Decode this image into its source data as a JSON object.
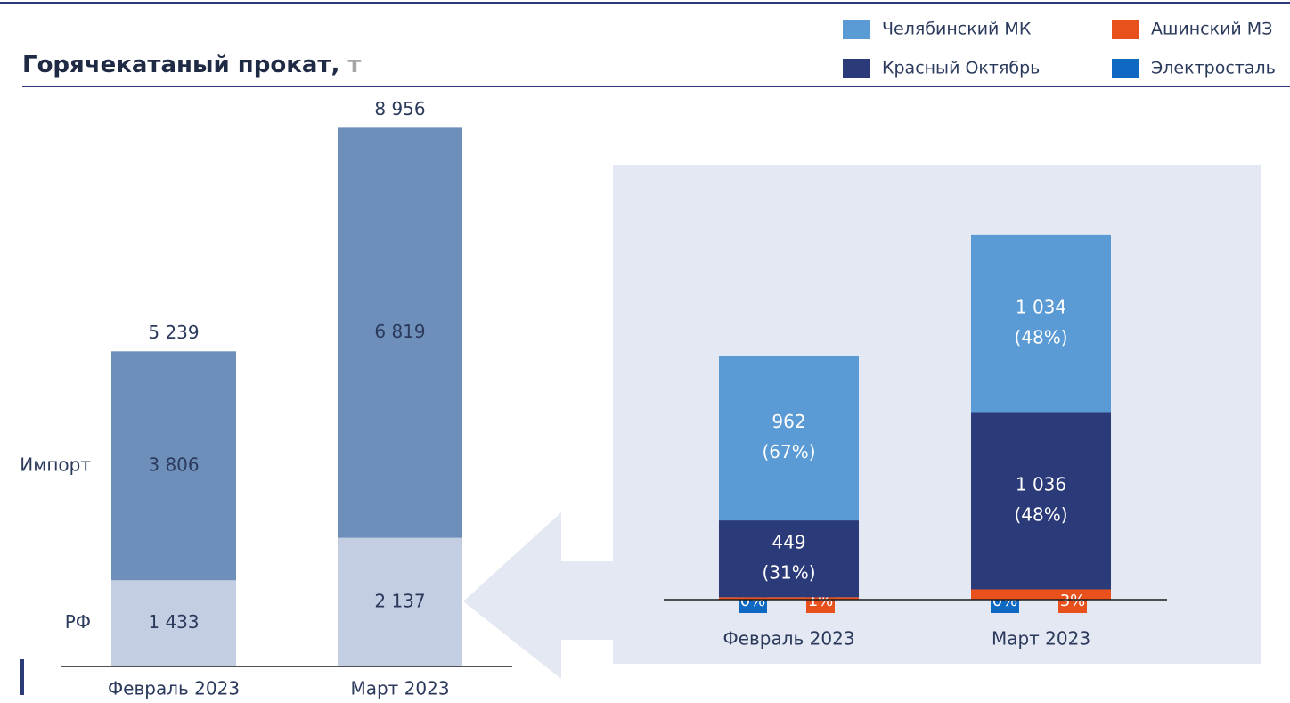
{
  "chart_data": [
    {
      "type": "stacked_bar",
      "title": "Горячекатаный прокат,",
      "unit": "т",
      "categories": [
        "Февраль 2023",
        "Март 2023"
      ],
      "series": [
        {
          "name": "РФ",
          "color": "#c3cee2",
          "values": [
            1433,
            2137
          ],
          "value_labels": [
            "1 433",
            "2 137"
          ]
        },
        {
          "name": "Импорт",
          "color": "#6f8fbb",
          "values": [
            3806,
            6819
          ],
          "value_labels": [
            "3 806",
            "6 819"
          ]
        }
      ],
      "totals": [
        5239,
        8956
      ],
      "total_labels": [
        "5 239",
        "8 956"
      ],
      "ylim": [
        0,
        9450
      ]
    },
    {
      "type": "stacked_bar_breakdown",
      "categories": [
        "Февраль 2023",
        "Март 2023"
      ],
      "series": [
        {
          "name": "Челябинский МК",
          "color": "#5b9bd5",
          "values": [
            962,
            1034
          ],
          "value_labels": [
            "962",
            "1 034"
          ],
          "shares": [
            67,
            48
          ],
          "share_labels": [
            "(67%)",
            "(48%)"
          ]
        },
        {
          "name": "Красный Октябрь",
          "color": "#2b3a78",
          "values": [
            449,
            1036
          ],
          "value_labels": [
            "449",
            "1 036"
          ],
          "shares": [
            31,
            48
          ],
          "share_labels": [
            "(31%)",
            "(48%)"
          ]
        },
        {
          "name": "Ашинский МЗ",
          "color": "#e8501c",
          "values": [
            14,
            60
          ],
          "shares": [
            1,
            3
          ],
          "share_labels": [
            "1%",
            "3%"
          ]
        },
        {
          "name": "Электросталь",
          "color": "#0f68c2",
          "values": [
            0,
            0
          ],
          "shares": [
            0,
            0
          ],
          "share_labels": [
            "0%",
            "0%"
          ]
        }
      ],
      "ylim": [
        0,
        2900
      ]
    }
  ]
}
